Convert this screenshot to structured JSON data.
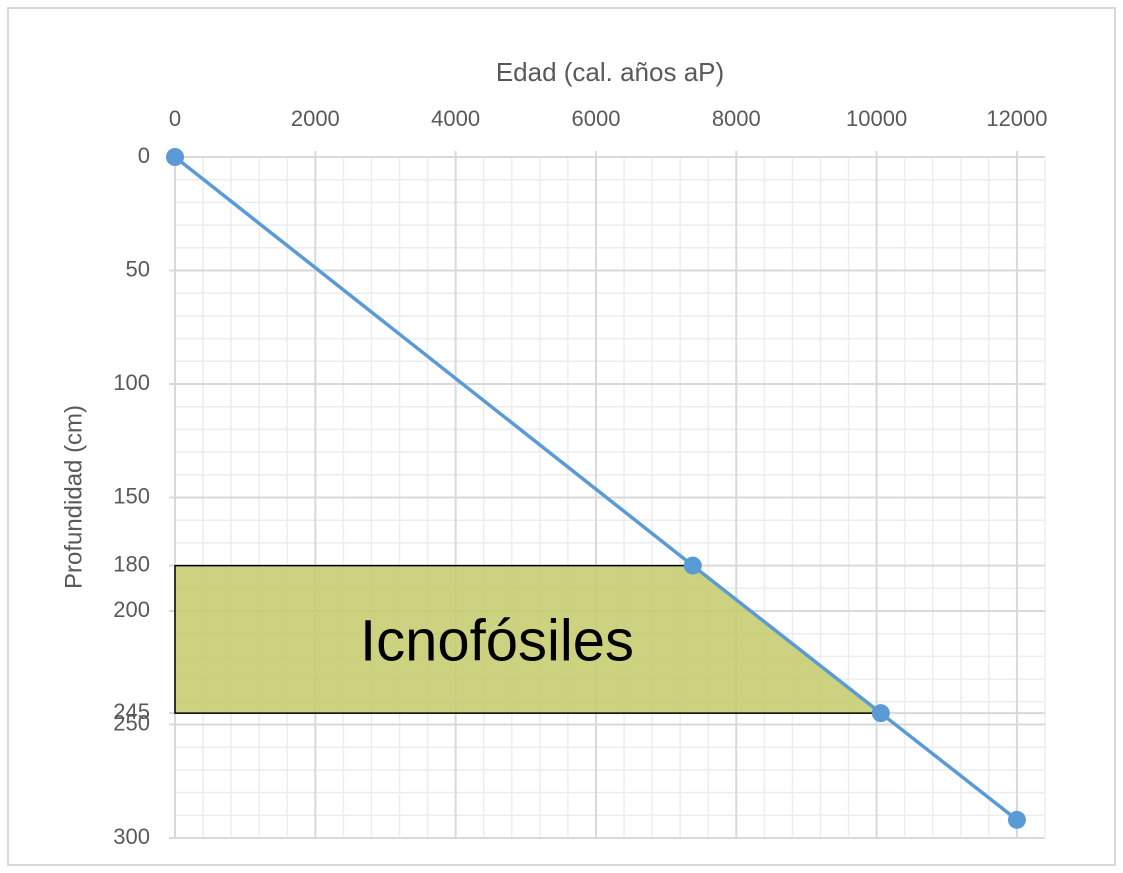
{
  "chart_data": {
    "type": "line",
    "xlabel": "Edad (cal. años aP)",
    "ylabel": "Profundidad (cm)",
    "series": [
      {
        "color": "#5b9bd5",
        "x": [
          0,
          7380,
          10060,
          12000
        ],
        "y": [
          0,
          180,
          245,
          292
        ]
      }
    ],
    "xlim": [
      0,
      12400
    ],
    "xticks": [
      0,
      2000,
      4000,
      6000,
      8000,
      10000,
      12000
    ],
    "ylim": [
      0,
      300
    ],
    "yticks": [
      0,
      50,
      100,
      150,
      180,
      200,
      245,
      250,
      300
    ],
    "y_reversed": true,
    "x_axis_position": "top",
    "grid": true,
    "xminorticks": [
      0,
      400,
      800,
      1200,
      1600,
      2000,
      2400,
      2800,
      3200,
      3600,
      4000,
      4400,
      4800,
      5200,
      5600,
      6000,
      6400,
      6800,
      7200,
      7600,
      8000,
      8400,
      8800,
      9200,
      9600,
      10000,
      10400,
      10800,
      11200,
      11600,
      12000,
      12400
    ],
    "yminorticks": [
      0,
      10,
      20,
      30,
      40,
      50,
      60,
      70,
      80,
      90,
      100,
      110,
      120,
      130,
      140,
      150,
      160,
      170,
      180,
      190,
      200,
      210,
      220,
      230,
      240,
      250,
      260,
      270,
      280,
      290,
      300
    ],
    "annotation": {
      "text": "Icnofósiles",
      "color": "#c3ca6a"
    }
  }
}
